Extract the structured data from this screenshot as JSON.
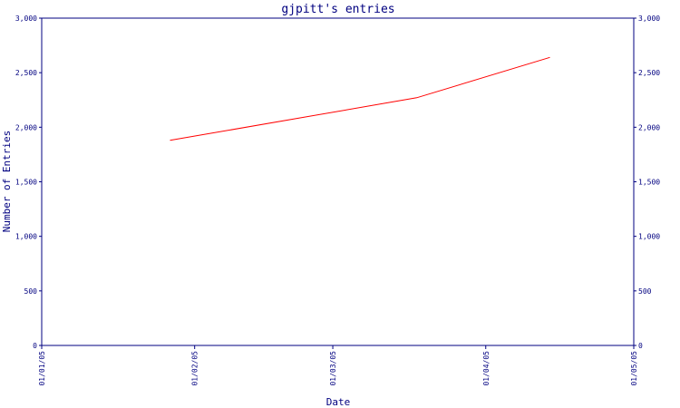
{
  "chart_data": {
    "type": "line",
    "title": "gjpitt's entries",
    "xlabel": "Date",
    "ylabel": "Number of Entries",
    "x_ticks": [
      "01/01/05",
      "01/02/05",
      "01/03/05",
      "01/04/05",
      "01/05/05"
    ],
    "y_ticks": [
      "0",
      "500",
      "1,000",
      "1,500",
      "2,000",
      "2,500",
      "3,000"
    ],
    "ylim": [
      0,
      3000
    ],
    "xlim": [
      "2005-01-01",
      "2005-05-01"
    ],
    "grid": false,
    "series": [
      {
        "x": [
          "2005-01-27",
          "2005-03-18",
          "2005-04-14"
        ],
        "values": [
          1880,
          2270,
          2640
        ]
      }
    ],
    "colors": {
      "axis": "#000080",
      "line": "#ff0000"
    }
  }
}
